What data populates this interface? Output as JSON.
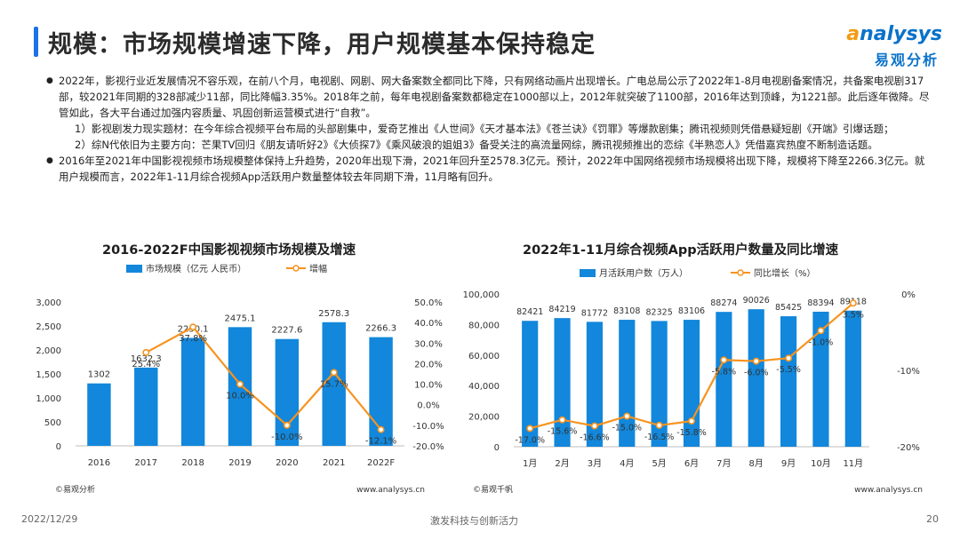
{
  "slide": {
    "title": "规模：市场规模增速下降，用户规模基本保持稳定",
    "footer_date": "2022/12/29",
    "footer_slogan": "激发科技与创新活力",
    "page_number": "20"
  },
  "logo": {
    "en_prefix": "a",
    "en_rest": "nalysys",
    "cn": "易观分析"
  },
  "content": {
    "para1": "2022年，影视行业近发展情况不容乐观，在前八个月，电视剧、网剧、网大备案数全都同比下降，只有网络动画片出现增长。广电总局公示了2022年1-8月电视剧备案情况，共备案电视剧317部，较2021年同期的328部减少11部，同比降幅3.35%。2018年之前，每年电视剧备案数都稳定在1000部以上，2012年就突破了1100部，2016年达到顶峰，为1221部。此后逐年微降。尽管如此，各大平台通过加强内容质量、巩固创新运营模式进行“自救”。",
    "sub1": "1）影视剧发力现实题材：在今年综合视频平台布局的头部剧集中，爱奇艺推出《人世间》《天才基本法》《苍兰诀》《罚罪》等爆款剧集；腾讯视频则凭借悬疑短剧《开端》引爆话题；",
    "sub2": "2）综N代依旧为主要方向：芒果TV回归《朋友请听好2》《大侦探7》《乘风破浪的姐姐3》备受关注的高流量网综，腾讯视频推出的恋综《半熟恋人》凭借嘉宾热度不断制造话题。",
    "para2": "2016年至2021年中国影视视频市场规模整体保持上升趋势，2020年出现下滑，2021年回升至2578.3亿元。预计，2022年中国网络视频市场规模将出现下降，规模将下降至2266.3亿元。就用户规模而言，2022年1-11月综合视频App活跃用户数量整体较去年同期下滑，11月略有回升。"
  },
  "chart_data": [
    {
      "type": "bar",
      "title": "2016-2022F中国影视视频市场规模及增速",
      "categories": [
        "2016",
        "2017",
        "2018",
        "2019",
        "2020",
        "2021",
        "2022F"
      ],
      "series": [
        {
          "name": "市场规模（亿元 人民币）",
          "type": "bar",
          "axis": "left",
          "values": [
            1302,
            1632.3,
            2250.1,
            2475.1,
            2227.6,
            2578.3,
            2266.3
          ],
          "labels": [
            "1302",
            "1632.3",
            "2250.1",
            "2475.1",
            "2227.6",
            "2578.3",
            "2266.3"
          ]
        },
        {
          "name": "增幅",
          "type": "line",
          "axis": "right",
          "values": [
            null,
            25.4,
            37.8,
            10.0,
            -10.0,
            15.7,
            -12.1
          ],
          "labels": [
            "",
            "25.4%",
            "37.8%",
            "10.0%",
            "-10.0%",
            "15.7%",
            "-12.1%"
          ]
        }
      ],
      "ylim_left": [
        0,
        3000
      ],
      "yticks_left": [
        "0",
        "500",
        "1,000",
        "1,500",
        "2,000",
        "2,500",
        "3,000"
      ],
      "ylim_right": [
        -20,
        50
      ],
      "yticks_right": [
        "-20.0%",
        "-10.0%",
        "0.0%",
        "10.0%",
        "20.0%",
        "30.0%",
        "40.0%",
        "50.0%"
      ],
      "source": "©易观分析",
      "website": "www.analysys.cn",
      "colors": {
        "bar": "#1287db",
        "line": "#f7931e"
      }
    },
    {
      "type": "bar",
      "title": "2022年1-11月综合视频App活跃用户数量及同比增速",
      "categories": [
        "1月",
        "2月",
        "3月",
        "4月",
        "5月",
        "6月",
        "7月",
        "8月",
        "9月",
        "10月",
        "11月"
      ],
      "series": [
        {
          "name": "月活跃用户数（万人）",
          "type": "bar",
          "axis": "left",
          "values": [
            82421,
            84219,
            81772,
            83108,
            82325,
            83106,
            88274,
            90026,
            85425,
            88394,
            89118
          ],
          "labels": [
            "82421",
            "84219",
            "81772",
            "83108",
            "82325",
            "83106",
            "88274",
            "90026",
            "85425",
            "88394",
            "89118"
          ]
        },
        {
          "name": "同比增长（%）",
          "type": "line",
          "axis": "right",
          "values": [
            -17.0,
            -15.6,
            -16.6,
            -15.0,
            -16.5,
            -15.8,
            -5.8,
            -6.0,
            -5.5,
            -1.0,
            3.5
          ],
          "labels": [
            "-17.0%",
            "-15.6%",
            "-16.6%",
            "-15.0%",
            "-16.5%",
            "-15.8%",
            "-5.8%",
            "-6.0%",
            "-5.5%",
            "-1.0%",
            "3.5%"
          ]
        }
      ],
      "ylim_left": [
        0,
        100000
      ],
      "yticks_left": [
        "0",
        "20,000",
        "40,000",
        "60,000",
        "80,000",
        "100,000"
      ],
      "ylim_right": [
        -20,
        5
      ],
      "yticks_right": [
        "-20%",
        "-10%",
        "0%"
      ],
      "source": "©易观千帆",
      "website": "www.analysys.cn",
      "colors": {
        "bar": "#1287db",
        "line": "#f7931e"
      }
    }
  ]
}
